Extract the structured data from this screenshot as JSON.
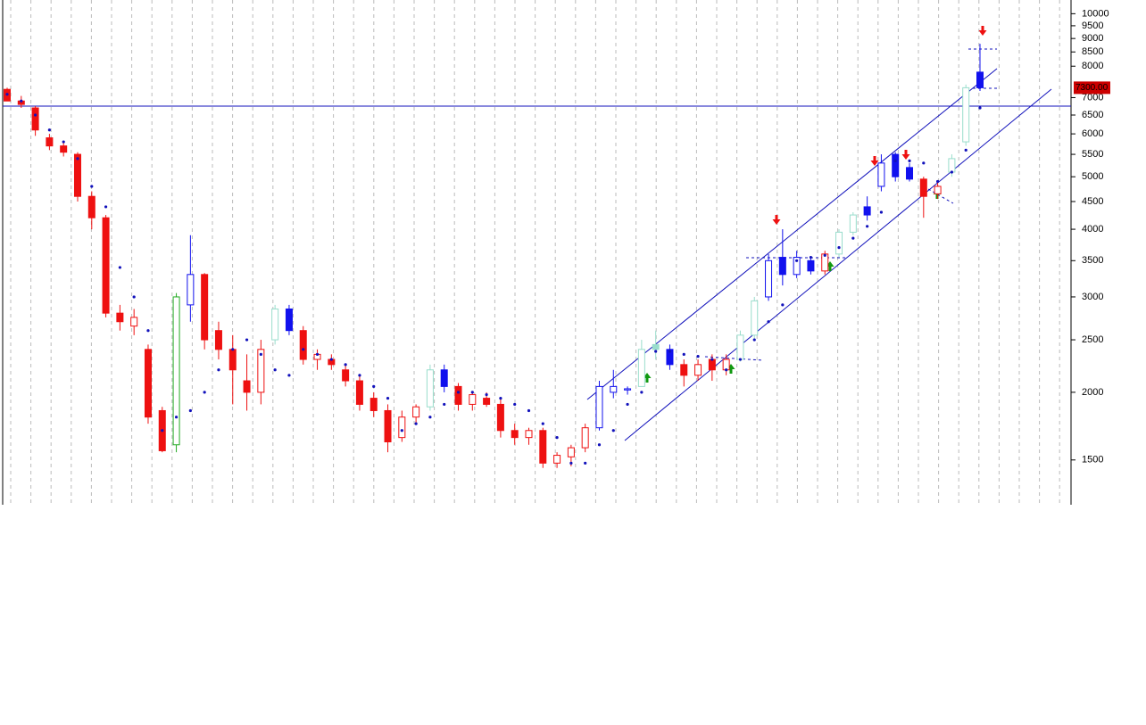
{
  "chart_data": {
    "type": "candlestick",
    "categories": [
      null,
      null,
      null,
      null,
      null,
      null,
      null,
      null,
      null,
      null,
      null,
      null,
      null,
      null,
      null,
      null,
      null,
      null,
      null,
      null,
      null,
      null,
      null,
      null,
      null,
      null,
      null,
      null,
      null,
      null,
      null,
      null,
      null,
      null,
      null,
      null,
      null,
      null,
      null,
      null,
      null,
      null,
      null,
      null,
      null,
      null,
      null,
      null,
      null,
      null,
      null,
      null,
      null,
      null,
      null,
      null,
      null,
      null,
      null,
      null,
      null,
      null,
      null,
      null,
      null,
      null,
      null,
      null,
      null,
      null
    ],
    "series": [
      {
        "open": [
          7250,
          6900,
          6700,
          5900,
          5700,
          5500,
          4600,
          4200,
          2800,
          2650,
          2400,
          1850,
          1600,
          2900,
          3300,
          2600,
          2400,
          2100,
          2000,
          2500,
          2850,
          2600,
          2300,
          2300,
          2200,
          2100,
          1950,
          1850,
          1650,
          1800,
          1880,
          2200,
          2050,
          1900,
          1950,
          1900,
          1700,
          1650,
          1700,
          1480,
          1520,
          1580,
          1720,
          2000,
          2020,
          2050,
          2450,
          2400,
          2250,
          2150,
          2300,
          2200,
          2300,
          2550,
          3000,
          3550,
          3300,
          3500,
          3350,
          3600,
          3950,
          4400,
          4800,
          5500,
          5200,
          4950,
          4650,
          5100,
          5800,
          7800
        ],
        "high": [
          7300,
          7050,
          6750,
          6000,
          5800,
          5550,
          4700,
          4250,
          2900,
          2850,
          2450,
          1880,
          3050,
          3900,
          3320,
          2700,
          2550,
          2350,
          2500,
          2900,
          2900,
          2650,
          2400,
          2350,
          2250,
          2150,
          2000,
          1900,
          1850,
          1900,
          2250,
          2250,
          2080,
          2000,
          2000,
          1950,
          1750,
          1720,
          1720,
          1550,
          1600,
          1750,
          2100,
          2200,
          2050,
          2500,
          2600,
          2450,
          2300,
          2300,
          2350,
          2350,
          2600,
          3000,
          3600,
          4000,
          3650,
          3550,
          3650,
          4000,
          4300,
          4600,
          5500,
          5550,
          5300,
          5000,
          4900,
          5500,
          7400,
          8800
        ],
        "low": [
          6900,
          6700,
          5950,
          5600,
          5450,
          4500,
          4000,
          2750,
          2600,
          2550,
          1750,
          1550,
          1550,
          2700,
          2400,
          2300,
          1900,
          1850,
          1900,
          2450,
          2550,
          2250,
          2200,
          2200,
          2050,
          1850,
          1800,
          1550,
          1620,
          1750,
          1850,
          2000,
          1850,
          1850,
          1880,
          1650,
          1600,
          1600,
          1450,
          1450,
          1460,
          1550,
          1700,
          1950,
          1980,
          2050,
          2300,
          2200,
          2050,
          2100,
          2100,
          2150,
          2280,
          2500,
          2950,
          3150,
          3250,
          3300,
          3300,
          3550,
          3900,
          4150,
          4700,
          4900,
          4900,
          4200,
          4550,
          5000,
          5700,
          7200
        ],
        "close": [
          6900,
          6800,
          6100,
          5700,
          5550,
          4600,
          4200,
          2800,
          2700,
          2750,
          1800,
          1560,
          3000,
          3300,
          2500,
          2400,
          2200,
          2000,
          2400,
          2850,
          2600,
          2300,
          2350,
          2250,
          2100,
          1900,
          1850,
          1620,
          1800,
          1880,
          2200,
          2050,
          1900,
          1980,
          1900,
          1700,
          1650,
          1700,
          1480,
          1530,
          1580,
          1720,
          2050,
          2050,
          2030,
          2400,
          2400,
          2250,
          2150,
          2250,
          2200,
          2300,
          2550,
          2950,
          3500,
          3300,
          3550,
          3350,
          3600,
          3950,
          4250,
          4250,
          5300,
          5000,
          4950,
          4600,
          4800,
          5400,
          7300,
          7300
        ],
        "colors": [
          "#ee1111",
          "#ee1111",
          "#ee1111",
          "#ee1111",
          "#ee1111",
          "#ee1111",
          "#ee1111",
          "#ee1111",
          "#ee1111",
          "#ee1111",
          "#ee1111",
          "#ee1111",
          "#22aa22",
          "#1111ee",
          "#ee1111",
          "#ee1111",
          "#ee1111",
          "#ee1111",
          "#ee1111",
          "#99ddcc",
          "#1111ee",
          "#ee1111",
          "#ee1111",
          "#ee1111",
          "#ee1111",
          "#ee1111",
          "#ee1111",
          "#ee1111",
          "#ee1111",
          "#ee1111",
          "#99ddcc",
          "#1111ee",
          "#ee1111",
          "#ee1111",
          "#ee1111",
          "#ee1111",
          "#ee1111",
          "#ee1111",
          "#ee1111",
          "#ee1111",
          "#ee1111",
          "#ee1111",
          "#1111ee",
          "#1111ee",
          "#1111ee",
          "#99ddcc",
          "#99ddcc",
          "#1111ee",
          "#ee1111",
          "#ee1111",
          "#ee1111",
          "#ee1111",
          "#99ddcc",
          "#99ddcc",
          "#1111ee",
          "#1111ee",
          "#1111ee",
          "#1111ee",
          "#ee1111",
          "#99ddcc",
          "#99ddcc",
          "#1111ee",
          "#1111ee",
          "#1111ee",
          "#1111ee",
          "#ee1111",
          "#ee1111",
          "#99ddcc",
          "#99ddcc",
          "#1111ee"
        ],
        "sar": [
          7100,
          6900,
          6500,
          6100,
          5800,
          5400,
          4800,
          4400,
          3400,
          3000,
          2600,
          1700,
          1800,
          1850,
          2000,
          2200,
          2400,
          2500,
          2350,
          2200,
          2150,
          2400,
          2350,
          2300,
          2250,
          2150,
          2050,
          1950,
          1700,
          1750,
          1800,
          1900,
          2000,
          2000,
          1980,
          1950,
          1900,
          1850,
          1750,
          1650,
          1480,
          1480,
          1600,
          1700,
          1900,
          2000,
          2380,
          2380,
          2350,
          2330,
          2300,
          2200,
          2300,
          2500,
          2700,
          2900,
          3500,
          3550,
          3580,
          3700,
          3850,
          4050,
          4300,
          5350,
          5350,
          5300,
          4900,
          5100,
          5600,
          6700
        ],
        "sar_color": "#1111bb"
      }
    ],
    "ylim": [
      1240,
      10600
    ],
    "yticks": [
      1500,
      2000,
      2500,
      3000,
      3500,
      4000,
      4500,
      5000,
      5500,
      6000,
      6500,
      7000,
      8000,
      8500,
      9000,
      9500,
      10000
    ],
    "log_scale": true,
    "hline": 6750,
    "last_price": 7300,
    "last_price_label": "7300.00"
  }
}
